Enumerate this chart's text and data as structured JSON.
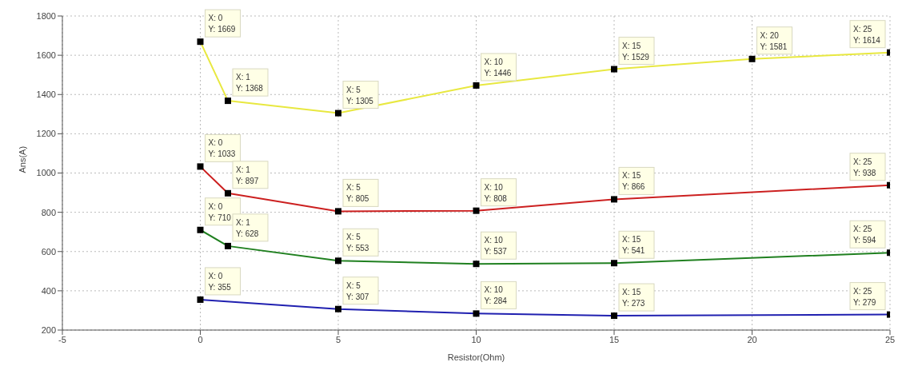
{
  "chart_data": {
    "type": "line",
    "xlabel": "Resistor(Ohm)",
    "ylabel": "Ans(A)",
    "xlim": [
      -5,
      25
    ],
    "xticks": [
      -5,
      0,
      5,
      10,
      15,
      20,
      25
    ],
    "ylim": [
      200,
      1800
    ],
    "yticks": [
      200,
      400,
      600,
      800,
      1000,
      1200,
      1400,
      1600,
      1800
    ],
    "grid": true,
    "line_style": "solid",
    "marker": "square",
    "series": [
      {
        "color": "#e8e840",
        "x": [
          0,
          1,
          5,
          10,
          15,
          20,
          25
        ],
        "values": [
          1669,
          1368,
          1305,
          1446,
          1529,
          1581,
          1614
        ]
      },
      {
        "color": "#cc2020",
        "x": [
          0,
          1,
          5,
          10,
          15,
          25
        ],
        "values": [
          1033,
          897,
          805,
          808,
          866,
          938
        ]
      },
      {
        "color": "#208020",
        "x": [
          0,
          1,
          5,
          10,
          15,
          25
        ],
        "values": [
          710,
          628,
          553,
          537,
          541,
          594
        ]
      },
      {
        "color": "#2020b0",
        "x": [
          0,
          5,
          10,
          15,
          25
        ],
        "values": [
          355,
          307,
          284,
          273,
          279
        ]
      }
    ],
    "annotations": [
      {
        "text": "X: 0\nY: 1669",
        "x": 0,
        "y": 1669
      },
      {
        "text": "X: 1\nY: 1368",
        "x": 1,
        "y": 1368
      },
      {
        "text": "X: 5\nY: 1305",
        "x": 5,
        "y": 1305
      },
      {
        "text": "X: 10\nY: 1446",
        "x": 10,
        "y": 1446
      },
      {
        "text": "X: 15\nY: 1529",
        "x": 15,
        "y": 1529
      },
      {
        "text": "X: 20\nY: 1581",
        "x": 20,
        "y": 1581
      },
      {
        "text": "X: 25\nY: 1614",
        "x": 25,
        "y": 1614
      },
      {
        "text": "X: 0\nY: 1033",
        "x": 0,
        "y": 1033
      },
      {
        "text": "X: 1\nY: 897",
        "x": 1,
        "y": 897
      },
      {
        "text": "X: 5\nY: 805",
        "x": 5,
        "y": 805
      },
      {
        "text": "X: 10\nY: 808",
        "x": 10,
        "y": 808
      },
      {
        "text": "X: 15\nY: 866",
        "x": 15,
        "y": 866
      },
      {
        "text": "X: 25\nY: 938",
        "x": 25,
        "y": 938
      },
      {
        "text": "X: 0\nY: 710",
        "x": 0,
        "y": 710
      },
      {
        "text": "X: 1\nY: 628",
        "x": 1,
        "y": 628
      },
      {
        "text": "X: 5\nY: 553",
        "x": 5,
        "y": 553
      },
      {
        "text": "X: 10\nY: 537",
        "x": 10,
        "y": 537
      },
      {
        "text": "X: 15\nY: 541",
        "x": 15,
        "y": 541
      },
      {
        "text": "X: 25\nY: 594",
        "x": 25,
        "y": 594
      },
      {
        "text": "X: 0\nY: 355",
        "x": 0,
        "y": 355
      },
      {
        "text": "X: 5\nY: 307",
        "x": 5,
        "y": 307
      },
      {
        "text": "X: 10\nY: 284",
        "x": 10,
        "y": 284
      },
      {
        "text": "X: 15\nY: 273",
        "x": 15,
        "y": 273
      },
      {
        "text": "X: 25\nY: 279",
        "x": 25,
        "y": 279
      }
    ]
  }
}
